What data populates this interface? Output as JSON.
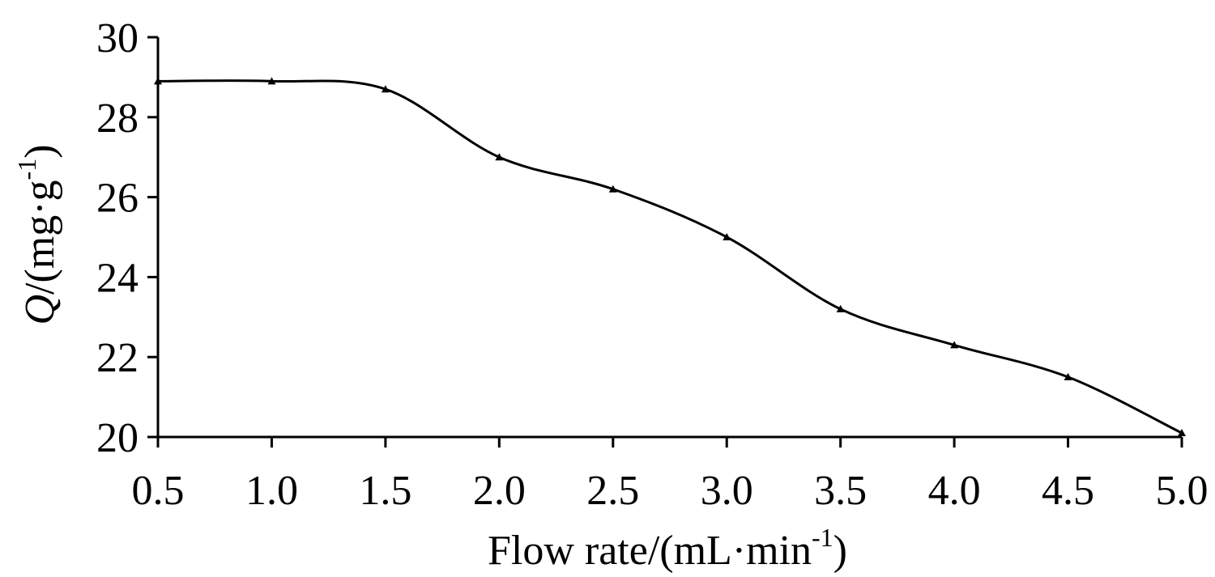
{
  "chart_data": {
    "type": "line",
    "xlabel": "Flow rate/(mL·min",
    "xlabel_sup": "-1",
    "xlabel_tail": ")",
    "ylabel_italic": "Q",
    "ylabel": "/(mg·g",
    "ylabel_sup": "-1",
    "ylabel_tail": ")",
    "x": [
      0.5,
      1.0,
      1.5,
      2.0,
      2.5,
      3.0,
      3.5,
      4.0,
      4.5,
      5.0
    ],
    "x_tick_labels": [
      "0.5",
      "1.0",
      "1.5",
      "2.0",
      "2.5",
      "3.0",
      "3.5",
      "4.0",
      "4.5",
      "5.0"
    ],
    "y_ticks": [
      20,
      22,
      24,
      26,
      28,
      30
    ],
    "y_tick_labels": [
      "20",
      "22",
      "24",
      "26",
      "28",
      "30"
    ],
    "series": [
      {
        "values": [
          28.9,
          28.9,
          28.7,
          27.0,
          26.2,
          25.0,
          23.2,
          22.3,
          21.5,
          20.1
        ],
        "color": "#000000",
        "marker": "triangle",
        "smooth": true
      }
    ],
    "xlim": [
      0.5,
      5.0
    ],
    "ylim": [
      20,
      30
    ],
    "grid": false,
    "legend": "none"
  }
}
